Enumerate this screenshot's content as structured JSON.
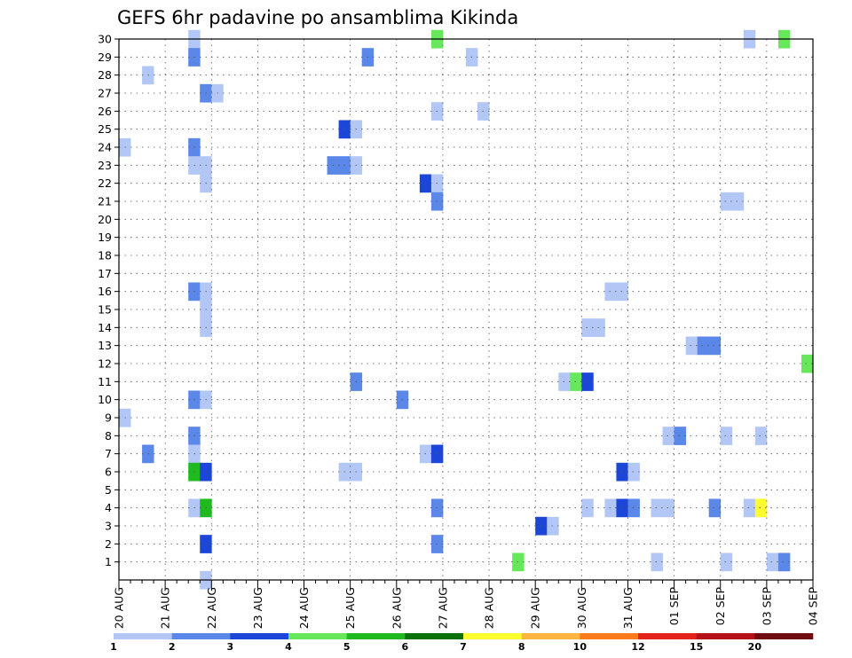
{
  "chart_data": {
    "type": "heatmap",
    "title": "GEFS 6hr padavine po ansamblima Kikinda",
    "x_ticks": [
      "20 AUG",
      "21 AUG",
      "22 AUG",
      "23 AUG",
      "24 AUG",
      "25 AUG",
      "26 AUG",
      "27 AUG",
      "28 AUG",
      "29 AUG",
      "30 AUG",
      "31 AUG",
      "01 SEP",
      "02 SEP",
      "03 SEP",
      "04 SEP"
    ],
    "y_ticks": [
      1,
      2,
      3,
      4,
      5,
      6,
      7,
      8,
      9,
      10,
      11,
      12,
      13,
      14,
      15,
      16,
      17,
      18,
      19,
      20,
      21,
      22,
      23,
      24,
      25,
      26,
      27,
      28,
      29,
      30
    ],
    "x_range": [
      "20 AUG 00Z",
      "04 SEP 00Z"
    ],
    "x_step_hours": 6,
    "y_range": [
      0,
      30
    ],
    "grid": true,
    "colorbar": {
      "labels": [
        "1",
        "2",
        "3",
        "4",
        "5",
        "6",
        "7",
        "8",
        "10",
        "12",
        "15",
        "20"
      ],
      "colors": [
        "#b3c7f7",
        "#5a87e8",
        "#1c46d8",
        "#66e85a",
        "#1fba1f",
        "#0b720b",
        "#fdfc2d",
        "#ffb53f",
        "#fd7b1a",
        "#e3231b",
        "#b6121a",
        "#700b0f"
      ]
    },
    "cells": [
      {
        "member": 30,
        "time_index": 6,
        "category": 1
      },
      {
        "member": 30,
        "time_index": 27,
        "category": 4
      },
      {
        "member": 30,
        "time_index": 54,
        "category": 1
      },
      {
        "member": 30,
        "time_index": 57,
        "category": 4
      },
      {
        "member": 29,
        "time_index": 6,
        "category": 2
      },
      {
        "member": 29,
        "time_index": 21,
        "category": 2
      },
      {
        "member": 29,
        "time_index": 30,
        "category": 1
      },
      {
        "member": 28,
        "time_index": 2,
        "category": 1
      },
      {
        "member": 27,
        "time_index": 7,
        "category": 2
      },
      {
        "member": 27,
        "time_index": 8,
        "category": 1
      },
      {
        "member": 26,
        "time_index": 27,
        "category": 1
      },
      {
        "member": 26,
        "time_index": 31,
        "category": 1
      },
      {
        "member": 25,
        "time_index": 19,
        "category": 3
      },
      {
        "member": 25,
        "time_index": 20,
        "category": 1
      },
      {
        "member": 24,
        "time_index": 0,
        "category": 1
      },
      {
        "member": 24,
        "time_index": 6,
        "category": 2
      },
      {
        "member": 23,
        "time_index": 6,
        "category": 1
      },
      {
        "member": 23,
        "time_index": 7,
        "category": 1
      },
      {
        "member": 23,
        "time_index": 18,
        "category": 2
      },
      {
        "member": 23,
        "time_index": 19,
        "category": 2
      },
      {
        "member": 23,
        "time_index": 20,
        "category": 1
      },
      {
        "member": 22,
        "time_index": 7,
        "category": 1
      },
      {
        "member": 22,
        "time_index": 26,
        "category": 3
      },
      {
        "member": 22,
        "time_index": 27,
        "category": 1
      },
      {
        "member": 21,
        "time_index": 27,
        "category": 2
      },
      {
        "member": 21,
        "time_index": 52,
        "category": 1
      },
      {
        "member": 21,
        "time_index": 53,
        "category": 1
      },
      {
        "member": 16,
        "time_index": 6,
        "category": 2
      },
      {
        "member": 16,
        "time_index": 7,
        "category": 1
      },
      {
        "member": 16,
        "time_index": 42,
        "category": 1
      },
      {
        "member": 16,
        "time_index": 43,
        "category": 1
      },
      {
        "member": 15,
        "time_index": 7,
        "category": 1
      },
      {
        "member": 14,
        "time_index": 7,
        "category": 1
      },
      {
        "member": 14,
        "time_index": 40,
        "category": 1
      },
      {
        "member": 14,
        "time_index": 41,
        "category": 1
      },
      {
        "member": 13,
        "time_index": 49,
        "category": 1
      },
      {
        "member": 13,
        "time_index": 50,
        "category": 2
      },
      {
        "member": 13,
        "time_index": 51,
        "category": 2
      },
      {
        "member": 12,
        "time_index": 59,
        "category": 4
      },
      {
        "member": 11,
        "time_index": 20,
        "category": 2
      },
      {
        "member": 11,
        "time_index": 38,
        "category": 1
      },
      {
        "member": 11,
        "time_index": 39,
        "category": 4
      },
      {
        "member": 11,
        "time_index": 40,
        "category": 3
      },
      {
        "member": 10,
        "time_index": 6,
        "category": 2
      },
      {
        "member": 10,
        "time_index": 7,
        "category": 1
      },
      {
        "member": 10,
        "time_index": 24,
        "category": 2
      },
      {
        "member": 9,
        "time_index": 0,
        "category": 1
      },
      {
        "member": 8,
        "time_index": 6,
        "category": 2
      },
      {
        "member": 8,
        "time_index": 47,
        "category": 1
      },
      {
        "member": 8,
        "time_index": 48,
        "category": 2
      },
      {
        "member": 8,
        "time_index": 52,
        "category": 1
      },
      {
        "member": 8,
        "time_index": 55,
        "category": 1
      },
      {
        "member": 7,
        "time_index": 2,
        "category": 2
      },
      {
        "member": 7,
        "time_index": 6,
        "category": 1
      },
      {
        "member": 7,
        "time_index": 26,
        "category": 1
      },
      {
        "member": 7,
        "time_index": 27,
        "category": 3
      },
      {
        "member": 6,
        "time_index": 6,
        "category": 5
      },
      {
        "member": 6,
        "time_index": 7,
        "category": 3
      },
      {
        "member": 6,
        "time_index": 19,
        "category": 1
      },
      {
        "member": 6,
        "time_index": 20,
        "category": 1
      },
      {
        "member": 6,
        "time_index": 43,
        "category": 3
      },
      {
        "member": 6,
        "time_index": 44,
        "category": 1
      },
      {
        "member": 4,
        "time_index": 6,
        "category": 1
      },
      {
        "member": 4,
        "time_index": 7,
        "category": 5
      },
      {
        "member": 4,
        "time_index": 27,
        "category": 2
      },
      {
        "member": 4,
        "time_index": 40,
        "category": 1
      },
      {
        "member": 4,
        "time_index": 42,
        "category": 1
      },
      {
        "member": 4,
        "time_index": 43,
        "category": 3
      },
      {
        "member": 4,
        "time_index": 44,
        "category": 2
      },
      {
        "member": 4,
        "time_index": 46,
        "category": 1
      },
      {
        "member": 4,
        "time_index": 47,
        "category": 1
      },
      {
        "member": 4,
        "time_index": 51,
        "category": 2
      },
      {
        "member": 4,
        "time_index": 54,
        "category": 1
      },
      {
        "member": 4,
        "time_index": 55,
        "category": 7
      },
      {
        "member": 3,
        "time_index": 36,
        "category": 3
      },
      {
        "member": 3,
        "time_index": 37,
        "category": 1
      },
      {
        "member": 2,
        "time_index": 7,
        "category": 3
      },
      {
        "member": 2,
        "time_index": 27,
        "category": 2
      },
      {
        "member": 1,
        "time_index": 34,
        "category": 4
      },
      {
        "member": 1,
        "time_index": 46,
        "category": 1
      },
      {
        "member": 1,
        "time_index": 52,
        "category": 1
      },
      {
        "member": 1,
        "time_index": 56,
        "category": 1
      },
      {
        "member": 1,
        "time_index": 57,
        "category": 2
      },
      {
        "member": 0,
        "time_index": 7,
        "category": 1
      }
    ]
  }
}
